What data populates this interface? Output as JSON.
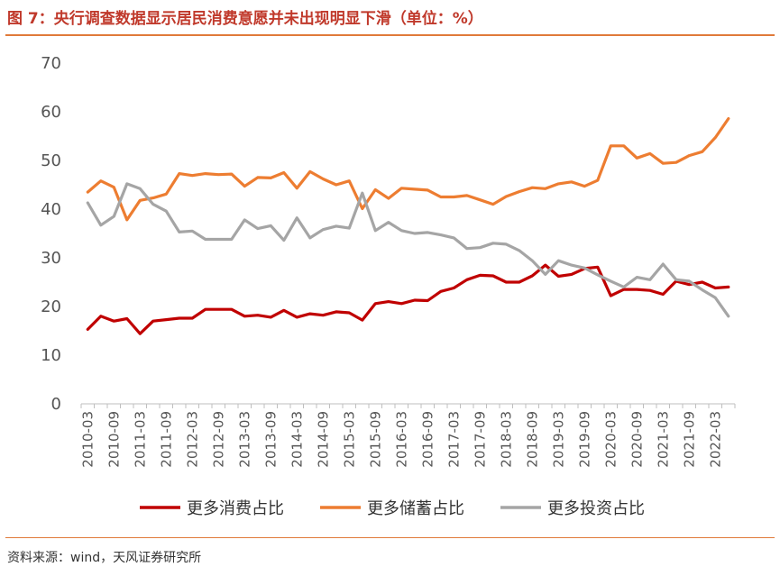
{
  "title": "图 7：央行调查数据显示居民消费意愿并未出现明显下滑（单位：%）",
  "source": "资料来源：wind，天风证券研究所",
  "colors": {
    "consume": "#c00000",
    "save": "#ed7d31",
    "invest": "#a5a5a5",
    "accent": "#e07a3a"
  },
  "chart_data": {
    "type": "line",
    "title": "图 7：央行调查数据显示居民消费意愿并未出现明显下滑（单位：%）",
    "ylim": [
      0,
      70
    ],
    "yticks": [
      0,
      10,
      20,
      30,
      40,
      50,
      60,
      70
    ],
    "xtick_labels": [
      "2010-03",
      "2010-09",
      "2011-03",
      "2011-09",
      "2012-03",
      "2012-09",
      "2013-03",
      "2013-09",
      "2014-03",
      "2014-09",
      "2015-03",
      "2015-09",
      "2016-03",
      "2016-09",
      "2017-03",
      "2017-09",
      "2018-03",
      "2018-09",
      "2019-03",
      "2019-09",
      "2020-03",
      "2020-09",
      "2021-03",
      "2021-09",
      "2022-03"
    ],
    "x_quarters": [
      "2010-03",
      "2010-06",
      "2010-09",
      "2010-12",
      "2011-03",
      "2011-06",
      "2011-09",
      "2011-12",
      "2012-03",
      "2012-06",
      "2012-09",
      "2012-12",
      "2013-03",
      "2013-06",
      "2013-09",
      "2013-12",
      "2014-03",
      "2014-06",
      "2014-09",
      "2014-12",
      "2015-03",
      "2015-06",
      "2015-09",
      "2015-12",
      "2016-03",
      "2016-06",
      "2016-09",
      "2016-12",
      "2017-03",
      "2017-06",
      "2017-09",
      "2017-12",
      "2018-03",
      "2018-06",
      "2018-09",
      "2018-12",
      "2019-03",
      "2019-06",
      "2019-09",
      "2019-12",
      "2020-03",
      "2020-06",
      "2020-09",
      "2020-12",
      "2021-03",
      "2021-06",
      "2021-09",
      "2021-12",
      "2022-03",
      "2022-06"
    ],
    "legend_position": "bottom",
    "grid": false,
    "series": [
      {
        "name": "更多消费占比",
        "color": "#c00000",
        "values": [
          15.3,
          18.0,
          17.0,
          17.5,
          14.4,
          17.0,
          17.3,
          17.6,
          17.6,
          19.4,
          19.4,
          19.4,
          18.0,
          18.2,
          17.8,
          19.2,
          17.8,
          18.5,
          18.2,
          18.9,
          18.7,
          17.2,
          20.6,
          21.0,
          20.6,
          21.3,
          21.2,
          23.1,
          23.8,
          25.5,
          26.4,
          26.3,
          25.0,
          25.0,
          26.3,
          28.5,
          26.2,
          26.6,
          27.8,
          28.1,
          22.2,
          23.5,
          23.5,
          23.3,
          22.5,
          25.2,
          24.5,
          25.0,
          23.8,
          24.0
        ]
      },
      {
        "name": "更多储蓄占比",
        "color": "#ed7d31",
        "values": [
          43.5,
          45.8,
          44.5,
          37.8,
          41.8,
          42.3,
          43.1,
          47.3,
          46.9,
          47.3,
          47.1,
          47.2,
          44.7,
          46.5,
          46.4,
          47.5,
          44.3,
          47.7,
          46.2,
          45.0,
          45.8,
          40.1,
          44.0,
          42.2,
          44.3,
          44.1,
          43.9,
          42.5,
          42.5,
          42.8,
          41.9,
          41.0,
          42.6,
          43.6,
          44.4,
          44.2,
          45.2,
          45.6,
          44.7,
          45.9,
          53.0,
          53.0,
          50.5,
          51.4,
          49.4,
          49.6,
          51.0,
          51.8,
          54.7,
          58.6
        ]
      },
      {
        "name": "更多投资占比",
        "color": "#a5a5a5",
        "values": [
          41.3,
          36.7,
          38.5,
          45.2,
          44.2,
          41.0,
          39.6,
          35.3,
          35.5,
          33.8,
          33.8,
          33.8,
          37.8,
          36.0,
          36.6,
          33.6,
          38.2,
          34.1,
          35.8,
          36.5,
          36.1,
          43.3,
          35.6,
          37.3,
          35.6,
          35.0,
          35.2,
          34.7,
          34.1,
          31.9,
          32.1,
          33.0,
          32.8,
          31.5,
          29.4,
          26.6,
          29.4,
          28.5,
          27.9,
          26.5,
          25.2,
          24.0,
          26.0,
          25.5,
          28.7,
          25.5,
          25.2,
          23.4,
          21.8,
          18.0
        ]
      }
    ]
  }
}
